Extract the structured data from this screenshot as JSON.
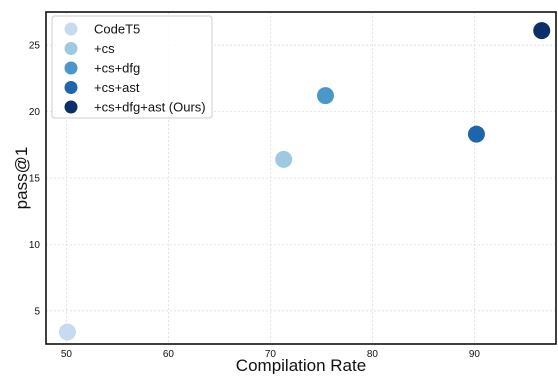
{
  "chart_data": {
    "type": "scatter",
    "title": "",
    "xlabel": "Compilation Rate",
    "ylabel": "pass@1",
    "xlim": [
      48,
      98
    ],
    "ylim": [
      2.5,
      27.5
    ],
    "x_ticks": [
      50,
      60,
      70,
      80,
      90
    ],
    "y_ticks": [
      5,
      10,
      15,
      20,
      25
    ],
    "grid": true,
    "legend_position": "top-left",
    "series": [
      {
        "name": "CodeT5",
        "x": 50.1,
        "y": 3.4,
        "color": "#c6dbef"
      },
      {
        "name": "+cs",
        "x": 71.3,
        "y": 16.4,
        "color": "#9ecae1"
      },
      {
        "name": "+cs+dfg",
        "x": 75.4,
        "y": 21.2,
        "color": "#4a98c9"
      },
      {
        "name": "+cs+ast",
        "x": 90.2,
        "y": 18.3,
        "color": "#1f65ad"
      },
      {
        "name": "+cs+dfg+ast (Ours)",
        "x": 96.6,
        "y": 26.1,
        "color": "#0b2f6b"
      }
    ]
  }
}
